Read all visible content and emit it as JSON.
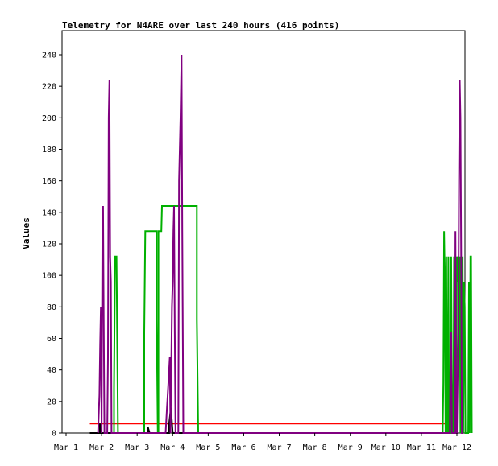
{
  "chart_data": {
    "type": "line",
    "title": "Telemetry for N4ARE over last 240 hours (416 points)",
    "xlabel": "",
    "ylabel": "Values",
    "x_tick_labels": [
      "Mar 1",
      "Mar 2",
      "Mar 3",
      "Mar 4",
      "Mar 5",
      "Mar 6",
      "Mar 7",
      "Mar 8",
      "Mar 9",
      "Mar 10",
      "Mar 11",
      "Mar 12"
    ],
    "x_unit": "days since Mar 1",
    "xlim": [
      0,
      11
    ],
    "y_ticks": [
      0,
      20,
      40,
      60,
      80,
      100,
      120,
      140,
      160,
      180,
      200,
      220,
      240
    ],
    "ylim": [
      0,
      240
    ],
    "grid": false,
    "legend": "none",
    "series": [
      {
        "color": "#ff0000",
        "points": [
          [
            0.67,
            6
          ],
          [
            10.75,
            6
          ]
        ]
      },
      {
        "color": "#000000",
        "points": [
          [
            0.67,
            0
          ],
          [
            0.95,
            0
          ],
          [
            0.95,
            6
          ],
          [
            0.97,
            0
          ],
          [
            2.3,
            0
          ],
          [
            2.3,
            4
          ],
          [
            2.35,
            0
          ],
          [
            2.9,
            0
          ],
          [
            2.9,
            6
          ],
          [
            2.95,
            16
          ],
          [
            3.0,
            0
          ],
          [
            3.2,
            0
          ],
          [
            10.75,
            0
          ]
        ]
      },
      {
        "color": "#00b000",
        "points": [
          [
            1.35,
            0
          ],
          [
            1.35,
            28
          ],
          [
            1.38,
            112
          ],
          [
            1.42,
            112
          ],
          [
            1.44,
            56
          ],
          [
            1.46,
            0
          ],
          [
            2.2,
            0
          ],
          [
            2.2,
            64
          ],
          [
            2.23,
            128
          ],
          [
            2.55,
            128
          ],
          [
            2.55,
            72
          ],
          [
            2.58,
            0
          ],
          [
            2.6,
            0
          ],
          [
            2.6,
            128
          ],
          [
            2.68,
            128
          ],
          [
            2.7,
            144
          ],
          [
            3.68,
            144
          ],
          [
            3.68,
            72
          ],
          [
            3.72,
            0
          ],
          [
            10.6,
            0
          ],
          [
            10.62,
            32
          ],
          [
            10.64,
            128
          ],
          [
            10.66,
            96
          ],
          [
            10.68,
            0
          ],
          [
            10.7,
            112
          ],
          [
            10.72,
            0
          ],
          [
            10.74,
            0
          ],
          [
            10.76,
            112
          ],
          [
            10.78,
            0
          ],
          [
            10.82,
            0
          ],
          [
            10.84,
            112
          ],
          [
            10.86,
            32
          ],
          [
            10.88,
            0
          ],
          [
            10.9,
            0
          ],
          [
            10.92,
            112
          ],
          [
            10.94,
            0
          ],
          [
            10.96,
            112
          ],
          [
            10.98,
            0
          ],
          [
            11.0,
            112
          ],
          [
            11.02,
            96
          ],
          [
            11.04,
            112
          ],
          [
            11.06,
            56
          ],
          [
            11.08,
            112
          ],
          [
            11.1,
            0
          ],
          [
            11.12,
            112
          ],
          [
            11.14,
            64
          ],
          [
            11.16,
            112
          ],
          [
            11.18,
            0
          ],
          [
            11.2,
            96
          ],
          [
            11.22,
            80
          ],
          [
            11.24,
            0
          ],
          [
            11.26,
            0
          ],
          [
            11.28,
            0
          ],
          [
            11.3,
            0
          ],
          [
            11.32,
            0
          ],
          [
            11.34,
            96
          ],
          [
            11.36,
            0
          ],
          [
            11.38,
            112
          ],
          [
            11.4,
            112
          ],
          [
            11.42,
            0
          ]
        ]
      },
      {
        "color": "#800080",
        "points": [
          [
            0.9,
            0
          ],
          [
            0.94,
            24
          ],
          [
            0.96,
            56
          ],
          [
            0.98,
            80
          ],
          [
            1.0,
            0
          ],
          [
            1.02,
            120
          ],
          [
            1.04,
            144
          ],
          [
            1.06,
            72
          ],
          [
            1.08,
            0
          ],
          [
            1.1,
            0
          ],
          [
            1.12,
            0
          ],
          [
            1.14,
            0
          ],
          [
            1.16,
            0
          ],
          [
            1.18,
            48
          ],
          [
            1.2,
            200
          ],
          [
            1.22,
            224
          ],
          [
            1.24,
            112
          ],
          [
            1.26,
            96
          ],
          [
            1.28,
            0
          ],
          [
            2.8,
            0
          ],
          [
            2.84,
            16
          ],
          [
            2.88,
            32
          ],
          [
            2.92,
            48
          ],
          [
            2.94,
            0
          ],
          [
            2.98,
            80
          ],
          [
            3.0,
            96
          ],
          [
            3.02,
            128
          ],
          [
            3.04,
            144
          ],
          [
            3.06,
            64
          ],
          [
            3.08,
            0
          ],
          [
            3.1,
            0
          ],
          [
            3.12,
            0
          ],
          [
            3.14,
            0
          ],
          [
            3.16,
            0
          ],
          [
            3.18,
            160
          ],
          [
            3.22,
            200
          ],
          [
            3.25,
            240
          ],
          [
            3.27,
            128
          ],
          [
            3.3,
            0
          ],
          [
            10.8,
            0
          ],
          [
            10.82,
            48
          ],
          [
            10.84,
            64
          ],
          [
            10.86,
            0
          ],
          [
            10.88,
            0
          ],
          [
            10.9,
            0
          ],
          [
            10.92,
            0
          ],
          [
            10.94,
            0
          ],
          [
            10.96,
            128
          ],
          [
            10.98,
            0
          ],
          [
            11.0,
            0
          ],
          [
            11.02,
            32
          ],
          [
            11.04,
            64
          ],
          [
            11.06,
            160
          ],
          [
            11.08,
            224
          ],
          [
            11.1,
            200
          ],
          [
            11.12,
            112
          ],
          [
            11.14,
            0
          ],
          [
            11.16,
            0
          ]
        ]
      }
    ]
  }
}
